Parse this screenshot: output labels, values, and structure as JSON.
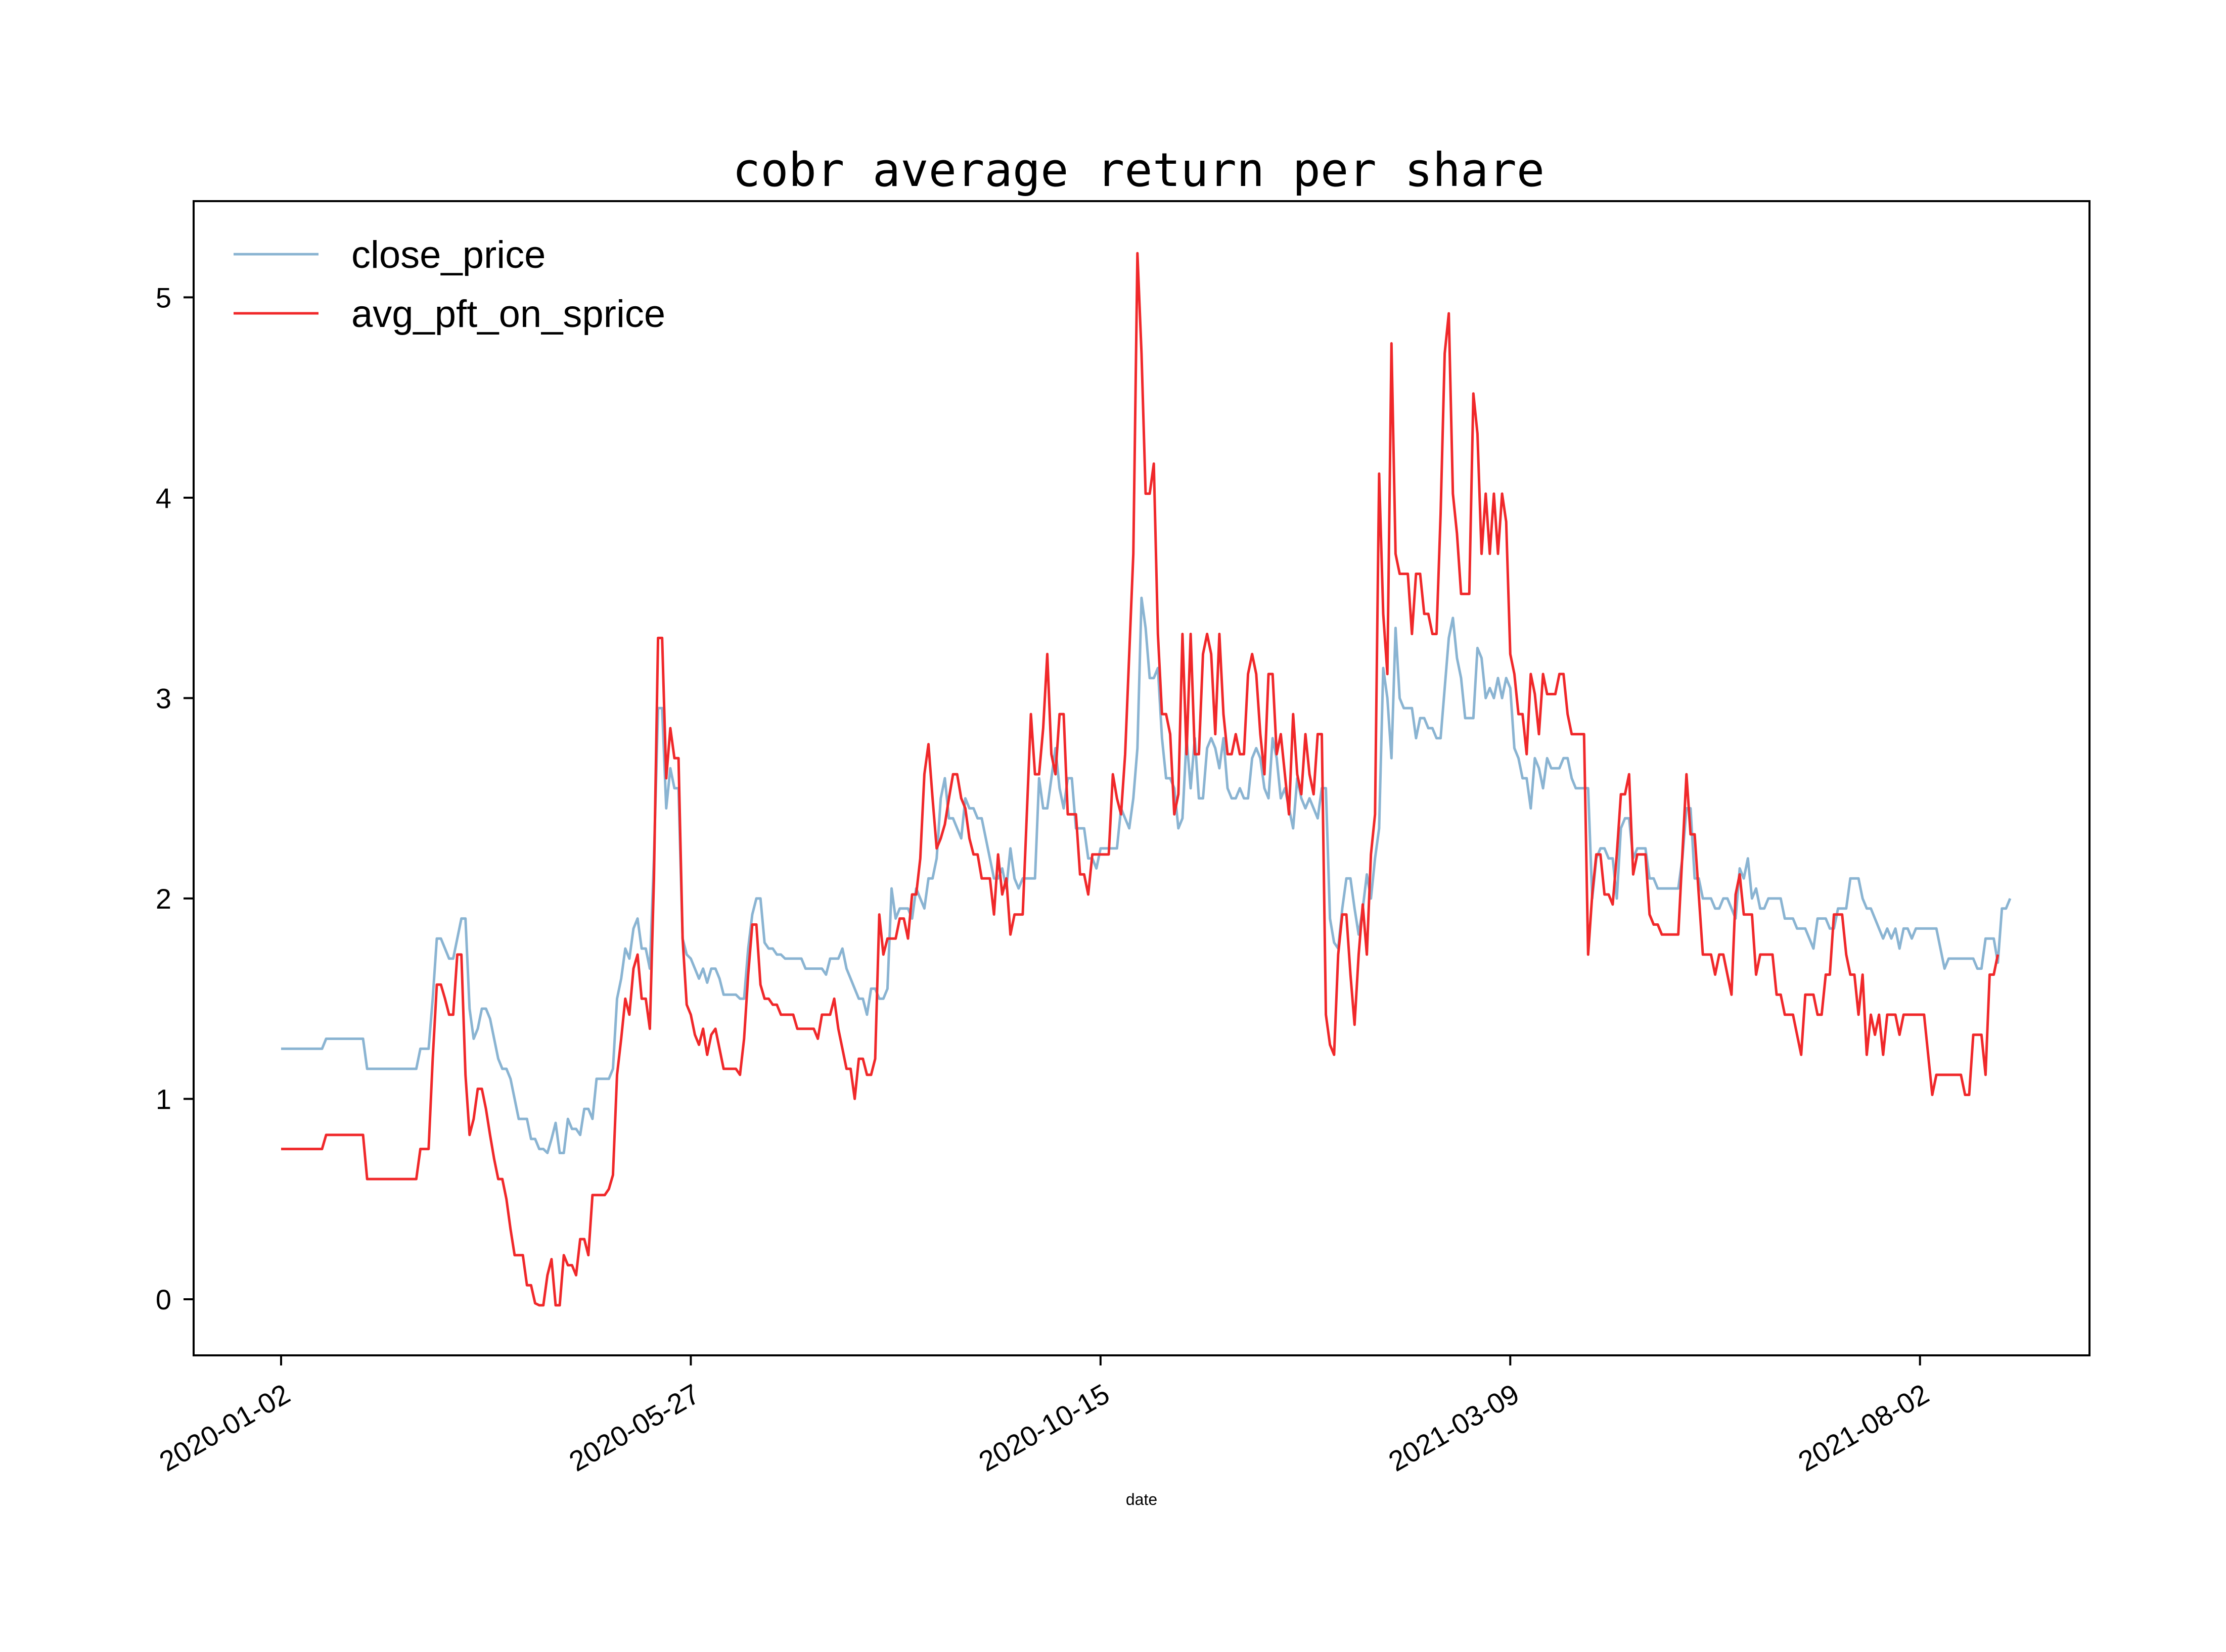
{
  "chart_data": {
    "type": "line",
    "title": "cobr average return per share",
    "xlabel": "date",
    "ylabel": "",
    "x_tick_labels": [
      "2020-01-02",
      "2020-05-27",
      "2020-10-15",
      "2021-03-09",
      "2021-08-02"
    ],
    "y_tick_labels": [
      "0",
      "1",
      "2",
      "3",
      "4",
      "5"
    ],
    "ylim": [
      -0.28,
      5.48
    ],
    "grid": false,
    "legend_position": "upper-left",
    "series": [
      {
        "name": "close_price",
        "color": "#8ab4d2",
        "values": [
          1.25,
          1.25,
          1.25,
          1.25,
          1.25,
          1.25,
          1.25,
          1.25,
          1.25,
          1.25,
          1.25,
          1.3,
          1.3,
          1.3,
          1.3,
          1.3,
          1.3,
          1.3,
          1.3,
          1.3,
          1.3,
          1.15,
          1.15,
          1.15,
          1.15,
          1.15,
          1.15,
          1.15,
          1.15,
          1.15,
          1.15,
          1.15,
          1.15,
          1.15,
          1.25,
          1.25,
          1.25,
          1.5,
          1.8,
          1.8,
          1.75,
          1.7,
          1.7,
          1.8,
          1.9,
          1.9,
          1.45,
          1.3,
          1.35,
          1.45,
          1.45,
          1.4,
          1.3,
          1.2,
          1.15,
          1.15,
          1.1,
          1.0,
          0.9,
          0.9,
          0.9,
          0.8,
          0.8,
          0.75,
          0.75,
          0.73,
          0.8,
          0.88,
          0.73,
          0.73,
          0.9,
          0.85,
          0.85,
          0.82,
          0.95,
          0.95,
          0.9,
          1.1,
          1.1,
          1.1,
          1.1,
          1.15,
          1.5,
          1.6,
          1.75,
          1.7,
          1.85,
          1.9,
          1.75,
          1.75,
          1.65,
          2.2,
          2.95,
          2.95,
          2.45,
          2.65,
          2.55,
          2.55,
          1.8,
          1.72,
          1.7,
          1.65,
          1.6,
          1.65,
          1.58,
          1.65,
          1.65,
          1.6,
          1.52,
          1.52,
          1.52,
          1.52,
          1.5,
          1.5,
          1.75,
          1.92,
          2.0,
          2.0,
          1.78,
          1.75,
          1.75,
          1.72,
          1.72,
          1.7,
          1.7,
          1.7,
          1.7,
          1.7,
          1.65,
          1.65,
          1.65,
          1.65,
          1.65,
          1.62,
          1.7,
          1.7,
          1.7,
          1.75,
          1.65,
          1.6,
          1.55,
          1.5,
          1.5,
          1.42,
          1.55,
          1.55,
          1.5,
          1.5,
          1.55,
          2.05,
          1.9,
          1.95,
          1.95,
          1.95,
          1.9,
          2.05,
          2.0,
          1.95,
          2.1,
          2.1,
          2.2,
          2.5,
          2.6,
          2.4,
          2.4,
          2.35,
          2.3,
          2.5,
          2.45,
          2.45,
          2.4,
          2.4,
          2.3,
          2.2,
          2.1,
          2.1,
          2.15,
          2.05,
          2.25,
          2.1,
          2.05,
          2.1,
          2.1,
          2.1,
          2.1,
          2.6,
          2.45,
          2.45,
          2.6,
          2.75,
          2.55,
          2.45,
          2.6,
          2.6,
          2.35,
          2.35,
          2.35,
          2.2,
          2.2,
          2.15,
          2.25,
          2.25,
          2.25,
          2.25,
          2.25,
          2.45,
          2.4,
          2.35,
          2.5,
          2.75,
          3.5,
          3.35,
          3.1,
          3.1,
          3.15,
          2.8,
          2.6,
          2.6,
          2.55,
          2.35,
          2.4,
          2.8,
          2.55,
          2.8,
          2.5,
          2.5,
          2.75,
          2.8,
          2.75,
          2.65,
          2.8,
          2.55,
          2.5,
          2.5,
          2.55,
          2.5,
          2.5,
          2.7,
          2.75,
          2.7,
          2.55,
          2.5,
          2.8,
          2.7,
          2.5,
          2.55,
          2.45,
          2.35,
          2.6,
          2.5,
          2.45,
          2.5,
          2.45,
          2.4,
          2.55,
          2.55,
          1.9,
          1.78,
          1.75,
          1.95,
          2.1,
          2.1,
          1.95,
          1.82,
          1.95,
          2.12,
          2.0,
          2.2,
          2.35,
          3.15,
          3.0,
          2.7,
          3.35,
          3.0,
          2.95,
          2.95,
          2.95,
          2.8,
          2.9,
          2.9,
          2.85,
          2.85,
          2.8,
          2.8,
          3.05,
          3.3,
          3.4,
          3.2,
          3.1,
          2.9,
          2.9,
          2.9,
          3.25,
          3.2,
          3.0,
          3.05,
          3.0,
          3.1,
          3.0,
          3.1,
          3.05,
          2.75,
          2.7,
          2.6,
          2.6,
          2.45,
          2.7,
          2.65,
          2.55,
          2.7,
          2.65,
          2.65,
          2.65,
          2.7,
          2.7,
          2.6,
          2.55,
          2.55,
          2.55,
          2.55,
          2.0,
          2.2,
          2.25,
          2.25,
          2.2,
          2.2,
          2.0,
          2.35,
          2.4,
          2.4,
          2.2,
          2.25,
          2.25,
          2.25,
          2.1,
          2.1,
          2.05,
          2.05,
          2.05,
          2.05,
          2.05,
          2.05,
          2.2,
          2.45,
          2.45,
          2.1,
          2.1,
          2.0,
          2.0,
          2.0,
          1.95,
          1.95,
          2.0,
          2.0,
          1.95,
          1.9,
          2.15,
          2.1,
          2.2,
          2.0,
          2.05,
          1.95,
          1.95,
          2.0,
          2.0,
          2.0,
          2.0,
          1.9,
          1.9,
          1.9,
          1.85,
          1.85,
          1.85,
          1.8,
          1.75,
          1.9,
          1.9,
          1.9,
          1.85,
          1.85,
          1.95,
          1.95,
          1.95,
          2.1,
          2.1,
          2.1,
          2.0,
          1.95,
          1.95,
          1.9,
          1.85,
          1.8,
          1.85,
          1.8,
          1.85,
          1.75,
          1.85,
          1.85,
          1.8,
          1.85,
          1.85,
          1.85,
          1.85,
          1.85,
          1.85,
          1.75,
          1.65,
          1.7,
          1.7,
          1.7,
          1.7,
          1.7,
          1.7,
          1.7,
          1.65,
          1.65,
          1.8,
          1.8,
          1.8,
          1.68,
          1.95,
          1.95,
          2.0
        ]
      },
      {
        "name": "avg_pft_on_sprice",
        "color": "#f0282a",
        "values": [
          0.75,
          0.75,
          0.75,
          0.75,
          0.75,
          0.75,
          0.75,
          0.75,
          0.75,
          0.75,
          0.75,
          0.82,
          0.82,
          0.82,
          0.82,
          0.82,
          0.82,
          0.82,
          0.82,
          0.82,
          0.82,
          0.6,
          0.6,
          0.6,
          0.6,
          0.6,
          0.6,
          0.6,
          0.6,
          0.6,
          0.6,
          0.6,
          0.6,
          0.6,
          0.75,
          0.75,
          0.75,
          1.2,
          1.57,
          1.57,
          1.5,
          1.42,
          1.42,
          1.72,
          1.72,
          1.12,
          0.82,
          0.9,
          1.05,
          1.05,
          0.95,
          0.82,
          0.7,
          0.6,
          0.6,
          0.5,
          0.35,
          0.22,
          0.22,
          0.22,
          0.07,
          0.07,
          -0.02,
          -0.03,
          -0.03,
          0.12,
          0.2,
          -0.03,
          -0.03,
          0.22,
          0.17,
          0.17,
          0.12,
          0.3,
          0.3,
          0.22,
          0.52,
          0.52,
          0.52,
          0.52,
          0.55,
          0.62,
          1.12,
          1.3,
          1.5,
          1.42,
          1.65,
          1.72,
          1.5,
          1.5,
          1.35,
          2.1,
          3.3,
          3.3,
          2.6,
          2.85,
          2.7,
          2.7,
          1.8,
          1.47,
          1.42,
          1.32,
          1.27,
          1.35,
          1.22,
          1.32,
          1.35,
          1.25,
          1.15,
          1.15,
          1.15,
          1.15,
          1.12,
          1.3,
          1.62,
          1.87,
          1.87,
          1.57,
          1.5,
          1.5,
          1.47,
          1.47,
          1.42,
          1.42,
          1.42,
          1.42,
          1.35,
          1.35,
          1.35,
          1.35,
          1.35,
          1.3,
          1.42,
          1.42,
          1.42,
          1.5,
          1.35,
          1.25,
          1.15,
          1.15,
          1.0,
          1.2,
          1.2,
          1.12,
          1.12,
          1.2,
          1.92,
          1.72,
          1.8,
          1.8,
          1.8,
          1.9,
          1.9,
          1.8,
          2.02,
          2.02,
          2.2,
          2.62,
          2.77,
          2.5,
          2.25,
          2.3,
          2.37,
          2.5,
          2.62,
          2.62,
          2.5,
          2.45,
          2.3,
          2.22,
          2.22,
          2.1,
          2.1,
          2.1,
          1.92,
          2.22,
          2.02,
          2.1,
          1.82,
          1.92,
          1.92,
          1.92,
          2.42,
          2.92,
          2.62,
          2.62,
          2.85,
          3.22,
          2.72,
          2.62,
          2.92,
          2.92,
          2.42,
          2.42,
          2.42,
          2.12,
          2.12,
          2.02,
          2.22,
          2.22,
          2.22,
          2.22,
          2.22,
          2.62,
          2.5,
          2.42,
          2.72,
          3.22,
          3.72,
          5.22,
          4.72,
          4.02,
          4.02,
          4.17,
          3.32,
          2.92,
          2.92,
          2.82,
          2.42,
          2.52,
          3.32,
          2.72,
          3.32,
          2.72,
          2.72,
          3.22,
          3.32,
          3.22,
          2.82,
          3.32,
          2.92,
          2.72,
          2.72,
          2.82,
          2.72,
          2.72,
          3.12,
          3.22,
          3.12,
          2.82,
          2.62,
          3.12,
          3.12,
          2.72,
          2.82,
          2.62,
          2.42,
          2.92,
          2.62,
          2.52,
          2.82,
          2.62,
          2.52,
          2.82,
          2.82,
          1.42,
          1.27,
          1.22,
          1.72,
          1.92,
          1.92,
          1.62,
          1.37,
          1.72,
          1.97,
          1.72,
          2.22,
          2.42,
          4.12,
          3.42,
          3.12,
          4.77,
          3.72,
          3.62,
          3.62,
          3.62,
          3.32,
          3.62,
          3.62,
          3.42,
          3.42,
          3.32,
          3.32,
          3.92,
          4.72,
          4.92,
          4.02,
          3.82,
          3.52,
          3.52,
          3.52,
          4.52,
          4.32,
          3.72,
          4.02,
          3.72,
          4.02,
          3.72,
          4.02,
          3.88,
          3.22,
          3.12,
          2.92,
          2.92,
          2.72,
          3.12,
          3.02,
          2.82,
          3.12,
          3.02,
          3.02,
          3.02,
          3.12,
          3.12,
          2.92,
          2.82,
          2.82,
          2.82,
          2.82,
          1.72,
          2.02,
          2.22,
          2.22,
          2.02,
          2.02,
          1.97,
          2.22,
          2.52,
          2.52,
          2.62,
          2.12,
          2.22,
          2.22,
          2.22,
          1.92,
          1.87,
          1.87,
          1.82,
          1.82,
          1.82,
          1.82,
          1.82,
          2.22,
          2.62,
          2.32,
          2.32,
          2.02,
          1.72,
          1.72,
          1.72,
          1.62,
          1.72,
          1.72,
          1.62,
          1.52,
          2.02,
          2.12,
          1.92,
          1.92,
          1.92,
          1.62,
          1.72,
          1.72,
          1.72,
          1.72,
          1.52,
          1.52,
          1.42,
          1.42,
          1.42,
          1.32,
          1.22,
          1.52,
          1.52,
          1.52,
          1.42,
          1.42,
          1.62,
          1.62,
          1.92,
          1.92,
          1.92,
          1.72,
          1.62,
          1.62,
          1.42,
          1.62,
          1.22,
          1.42,
          1.32,
          1.42,
          1.22,
          1.42,
          1.42,
          1.42,
          1.32,
          1.42,
          1.42,
          1.42,
          1.42,
          1.42,
          1.42,
          1.22,
          1.02,
          1.12,
          1.12,
          1.12,
          1.12,
          1.12,
          1.12,
          1.12,
          1.02,
          1.02,
          1.32,
          1.32,
          1.32,
          1.12,
          1.62,
          1.62,
          1.72
        ]
      }
    ]
  }
}
